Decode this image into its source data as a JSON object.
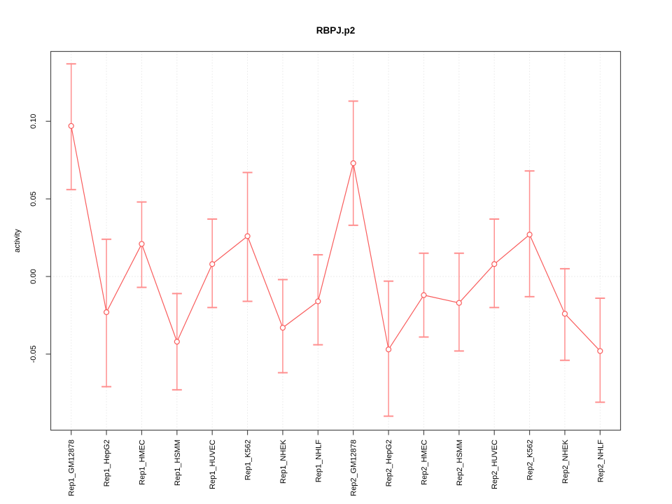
{
  "chart_data": {
    "type": "line",
    "title": "RBPJ.p2",
    "xlabel": "",
    "ylabel": "activity",
    "categories": [
      "Rep1_GM12878",
      "Rep1_HepG2",
      "Rep1_HMEC",
      "Rep1_HSMM",
      "Rep1_HUVEC",
      "Rep1_K562",
      "Rep1_NHEK",
      "Rep1_NHLF",
      "Rep2_GM12878",
      "Rep2_HepG2",
      "Rep2_HMEC",
      "Rep2_HSMM",
      "Rep2_HUVEC",
      "Rep2_K562",
      "Rep2_NHEK",
      "Rep2_NHLF"
    ],
    "values": [
      0.097,
      -0.023,
      0.021,
      -0.042,
      0.008,
      0.026,
      -0.033,
      -0.016,
      0.073,
      -0.047,
      -0.012,
      -0.017,
      0.008,
      0.027,
      -0.024,
      -0.048
    ],
    "error_lower": [
      0.056,
      -0.071,
      -0.007,
      -0.073,
      -0.02,
      -0.016,
      -0.062,
      -0.044,
      0.033,
      -0.09,
      -0.039,
      -0.048,
      -0.02,
      -0.013,
      -0.054,
      -0.081
    ],
    "error_upper": [
      0.137,
      0.024,
      0.048,
      -0.011,
      0.037,
      0.067,
      -0.002,
      0.014,
      0.113,
      -0.003,
      0.015,
      0.015,
      0.037,
      0.068,
      0.005,
      -0.014
    ],
    "ylim": [
      -0.099,
      0.145
    ],
    "yticks": [
      0.1,
      0.05,
      0.0,
      -0.05
    ],
    "ytick_labels": [
      "0.10",
      "0.05",
      "0.00",
      "-0.05"
    ],
    "grid": {
      "vertical_per_category": true,
      "horizontal_at_zero": true
    },
    "legend": "none",
    "colors": {
      "series_line": "#f95d5d",
      "point_stroke": "#f95d5d",
      "point_fill": "#ffffff",
      "error_bar": "#ff8f8f",
      "grid": "#dcdcdc",
      "axis": "#4d4d4d",
      "text": "#000000",
      "background": "#ffffff"
    }
  }
}
